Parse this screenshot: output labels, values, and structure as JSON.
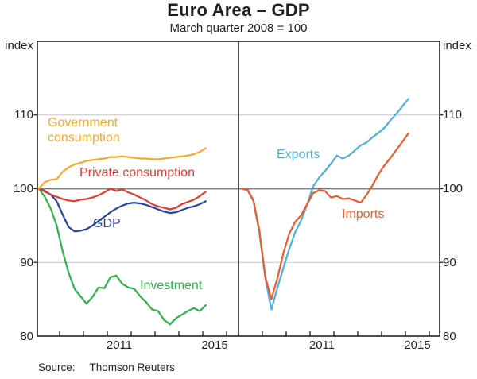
{
  "header": {
    "title": "Euro Area – GDP",
    "subtitle": "March quarter 2008 = 100"
  },
  "source": {
    "label": "Source:",
    "value": "Thomson Reuters"
  },
  "chart_data": {
    "type": "line",
    "title": "Euro Area – GDP",
    "subtitle": "March quarter 2008 = 100",
    "y_axis": {
      "unit_label": "index",
      "min": 80,
      "max": 120,
      "ticks": [
        80,
        90,
        100,
        110
      ],
      "gridlines": [
        90,
        110
      ],
      "reference_line": 100
    },
    "x_axis": {
      "start": 2008.125,
      "step": 0.25,
      "tick_years": [
        2009,
        2010,
        2011,
        2012,
        2013,
        2014,
        2015,
        2016
      ],
      "year_labels": [
        {
          "text": "2011",
          "center": 2011.5
        },
        {
          "text": "2015",
          "center": 2015.5
        }
      ]
    },
    "panels": [
      {
        "name": "left",
        "series": [
          {
            "name": "investment",
            "label": "Investment",
            "color": "#2eb34b",
            "values": [
              100,
              98.9,
              97.3,
              95.0,
              91.5,
              88.6,
              86.4,
              85.4,
              84.4,
              85.3,
              86.6,
              86.5,
              88.0,
              88.2,
              87.1,
              86.6,
              86.4,
              85.4,
              84.6,
              83.6,
              83.4,
              82.2,
              81.6,
              82.4,
              82.9,
              83.4,
              83.8,
              83.4,
              84.2
            ]
          },
          {
            "name": "gdp",
            "label": "GDP",
            "color": "#2943a1",
            "values": [
              100,
              99.7,
              99.2,
              98.3,
              96.5,
              94.8,
              94.2,
              94.3,
              94.5,
              95.0,
              95.6,
              96.2,
              96.8,
              97.3,
              97.7,
              98.0,
              98.1,
              98.0,
              97.8,
              97.5,
              97.2,
              96.9,
              96.7,
              96.8,
              97.1,
              97.4,
              97.6,
              97.9,
              98.3
            ]
          },
          {
            "name": "private-consumption",
            "label": "Private consumption",
            "color": "#e8392f",
            "values": [
              100,
              99.6,
              99.2,
              98.9,
              98.6,
              98.4,
              98.3,
              98.5,
              98.6,
              98.8,
              99.1,
              99.5,
              100.0,
              99.7,
              99.9,
              99.5,
              99.2,
              98.8,
              98.4,
              97.9,
              97.6,
              97.4,
              97.2,
              97.4,
              97.9,
              98.2,
              98.5,
              99.0,
              99.6
            ]
          },
          {
            "name": "government-consumption",
            "label": "Government consumption",
            "color": "#faa828",
            "values": [
              100,
              100.9,
              101.2,
              101.3,
              102.3,
              102.9,
              103.3,
              103.5,
              103.8,
              103.9,
              104.0,
              104.1,
              104.3,
              104.3,
              104.4,
              104.3,
              104.2,
              104.1,
              104.1,
              104.0,
              104.0,
              104.1,
              104.2,
              104.3,
              104.4,
              104.5,
              104.7,
              105.0,
              105.5
            ]
          }
        ]
      },
      {
        "name": "right",
        "series": [
          {
            "name": "exports",
            "label": "Exports",
            "color": "#4cafe0",
            "values": [
              100,
              99.8,
              98.3,
              94.0,
              87.8,
              83.6,
              86.5,
              89.2,
              91.8,
              94.1,
              95.7,
              97.8,
              100.3,
              101.5,
              102.4,
              103.4,
              104.5,
              104.1,
              104.5,
              105.2,
              105.9,
              106.3,
              107.0,
              107.6,
              108.3,
              109.3,
              110.2,
              111.2,
              112.2
            ]
          },
          {
            "name": "imports",
            "label": "Imports",
            "color": "#f05a28",
            "values": [
              100,
              99.9,
              98.4,
              94.3,
              88.0,
              85.0,
              87.8,
              91.2,
              93.9,
              95.5,
              96.4,
              97.9,
              99.4,
              99.8,
              99.7,
              98.8,
              99.0,
              98.6,
              98.7,
              98.4,
              98.1,
              99.2,
              100.5,
              102.0,
              103.2,
              104.2,
              105.3,
              106.4,
              107.5
            ]
          }
        ]
      }
    ]
  }
}
